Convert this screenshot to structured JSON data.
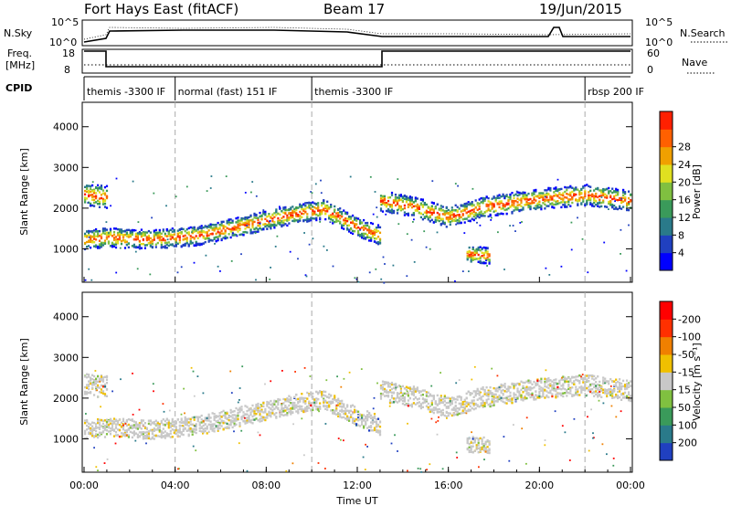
{
  "header": {
    "station": "Fort Hays East (fitACF)",
    "beam": "Beam 17",
    "date": "19/Jun/2015"
  },
  "top_panel": {
    "nsky_label": "N.Sky",
    "nsky_ticks": [
      "10^5",
      "10^0"
    ],
    "nsearch_label": "N.Search",
    "nsearch_ticks": [
      "10^5",
      "10^0"
    ]
  },
  "freq_panel": {
    "label_line1": "Freq.",
    "label_line2": "[MHz]",
    "left_ticks": [
      "18",
      "8"
    ],
    "nave_label": "Nave",
    "right_ticks": [
      "60",
      "0"
    ]
  },
  "cpid_panel": {
    "label": "CPID",
    "segments": [
      {
        "label": "themis -3300 IF",
        "start_hr": 0.0
      },
      {
        "label": "normal (fast) 151 IF",
        "start_hr": 4.0
      },
      {
        "label": "themis -3300 IF",
        "start_hr": 10.0
      },
      {
        "label": "rbsp 200 IF",
        "start_hr": 22.0
      }
    ]
  },
  "chart_data": [
    {
      "type": "heatmap",
      "name": "power",
      "ylabel": "Slant Range [km]",
      "xlabel": "",
      "xlim": [
        0,
        24
      ],
      "ylim": [
        180,
        4600
      ],
      "yticks": [
        "1000",
        "2000",
        "3000",
        "4000"
      ],
      "ytick_values": [
        1000,
        2000,
        3000,
        4000
      ],
      "xticks": [
        "00:00",
        "04:00",
        "08:00",
        "12:00",
        "16:00",
        "20:00",
        "00:00"
      ],
      "colorbar": {
        "label": "Power [dB]",
        "ticks": [
          "4",
          "8",
          "12",
          "16",
          "20",
          "24",
          "28"
        ],
        "colors": [
          "#0000ff",
          "#2040c0",
          "#2a7a8a",
          "#3a9a5a",
          "#80c040",
          "#e0e020",
          "#f0a000",
          "#ff6000",
          "#ff2000"
        ]
      },
      "bands": [
        {
          "x": [
            0.0,
            1.0,
            3.0,
            5.0,
            7.0,
            9.0,
            10.5,
            12.0,
            13.0
          ],
          "y": [
            1250,
            1300,
            1250,
            1350,
            1600,
            1850,
            2000,
            1550,
            1350
          ],
          "width": 260
        },
        {
          "x": [
            0.0,
            1.0
          ],
          "y": [
            2350,
            2300
          ],
          "width": 300
        },
        {
          "x": [
            13.0,
            14.5,
            16.0,
            17.5,
            20.0,
            22.0,
            24.0
          ],
          "y": [
            2200,
            2050,
            1800,
            2050,
            2250,
            2350,
            2200
          ],
          "width": 280
        },
        {
          "x": [
            16.8,
            17.8
          ],
          "y": [
            900,
            850
          ],
          "width": 220
        }
      ]
    },
    {
      "type": "heatmap",
      "name": "velocity",
      "ylabel": "Slant Range [km]",
      "xlabel": "Time UT",
      "xlim": [
        0,
        24
      ],
      "ylim": [
        180,
        4600
      ],
      "yticks": [
        "1000",
        "2000",
        "3000",
        "4000"
      ],
      "ytick_values": [
        1000,
        2000,
        3000,
        4000
      ],
      "xticks": [
        "00:00",
        "04:00",
        "08:00",
        "12:00",
        "16:00",
        "20:00",
        "00:00"
      ],
      "colorbar": {
        "label": "Velocity [m s⁻¹]",
        "ticks": [
          "200",
          "100",
          "50",
          "15",
          "-15",
          "-50",
          "-100",
          "-200"
        ],
        "colors": [
          "#2040c0",
          "#2a7a8a",
          "#3a9a5a",
          "#80c040",
          "#c8c8c8",
          "#f0c000",
          "#f08000",
          "#ff3000",
          "#ff0000"
        ]
      },
      "bands": [
        {
          "x": [
            0.0,
            1.0,
            3.0,
            5.0,
            7.0,
            9.0,
            10.5,
            12.0,
            13.0
          ],
          "y": [
            1250,
            1300,
            1250,
            1350,
            1600,
            1850,
            2000,
            1550,
            1350
          ],
          "width": 260
        },
        {
          "x": [
            0.0,
            1.0
          ],
          "y": [
            2350,
            2300
          ],
          "width": 300
        },
        {
          "x": [
            13.0,
            14.5,
            16.0,
            17.5,
            20.0,
            22.0,
            24.0
          ],
          "y": [
            2200,
            2050,
            1800,
            2050,
            2250,
            2350,
            2200
          ],
          "width": 280
        },
        {
          "x": [
            16.8,
            17.8
          ],
          "y": [
            900,
            850
          ],
          "width": 220
        }
      ]
    }
  ]
}
